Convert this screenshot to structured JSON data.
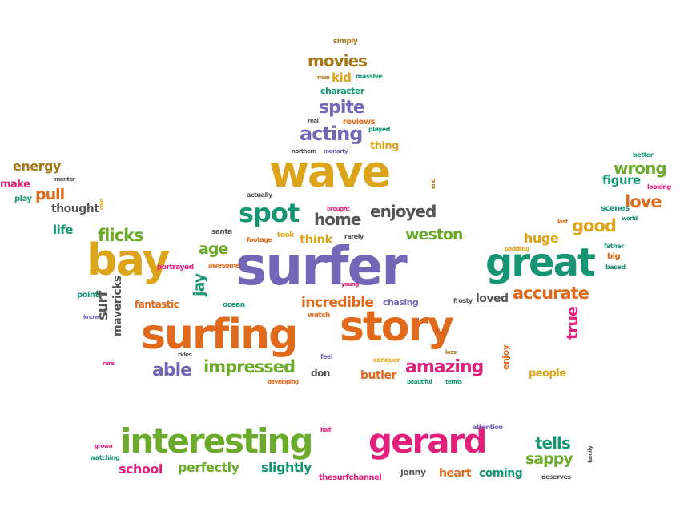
{
  "palette": {
    "purple": "#7466b6",
    "gold": "#dca41a",
    "orange": "#e06a1c",
    "green": "#6caa2c",
    "teal": "#179473",
    "magenta": "#e3217d",
    "brown": "#a77716",
    "gray": "#555555"
  },
  "words": [
    {
      "text": "surfer",
      "color": "purple"
    },
    {
      "text": "surfing",
      "color": "orange"
    },
    {
      "text": "story",
      "color": "orange"
    },
    {
      "text": "wave",
      "color": "gold"
    },
    {
      "text": "bay",
      "color": "gold"
    },
    {
      "text": "great",
      "color": "teal"
    },
    {
      "text": "interesting",
      "color": "green"
    },
    {
      "text": "gerard",
      "color": "magenta"
    },
    {
      "text": "spot",
      "color": "teal"
    },
    {
      "text": "amazing",
      "color": "magenta"
    },
    {
      "text": "acting",
      "color": "purple"
    },
    {
      "text": "impressed",
      "color": "green"
    },
    {
      "text": "accurate",
      "color": "orange"
    },
    {
      "text": "flicks",
      "color": "green"
    },
    {
      "text": "movies",
      "color": "brown"
    },
    {
      "text": "spite",
      "color": "purple"
    },
    {
      "text": "enjoyed",
      "color": "gray"
    },
    {
      "text": "home",
      "color": "gray"
    },
    {
      "text": "good",
      "color": "gold"
    },
    {
      "text": "wrong",
      "color": "green"
    },
    {
      "text": "love",
      "color": "orange"
    },
    {
      "text": "weston",
      "color": "green"
    },
    {
      "text": "able",
      "color": "purple"
    },
    {
      "text": "incredible",
      "color": "orange"
    },
    {
      "text": "true",
      "color": "magenta"
    },
    {
      "text": "tells",
      "color": "teal"
    },
    {
      "text": "sappy",
      "color": "green"
    },
    {
      "text": "age",
      "color": "green"
    },
    {
      "text": "jay",
      "color": "teal"
    },
    {
      "text": "think",
      "color": "gold"
    },
    {
      "text": "huge",
      "color": "gold"
    },
    {
      "text": "pull",
      "color": "orange"
    },
    {
      "text": "energy",
      "color": "brown"
    },
    {
      "text": "figure",
      "color": "teal"
    },
    {
      "text": "perfectly",
      "color": "green"
    },
    {
      "text": "slightly",
      "color": "teal"
    },
    {
      "text": "school",
      "color": "magenta"
    },
    {
      "text": "heart",
      "color": "orange"
    },
    {
      "text": "coming",
      "color": "teal"
    },
    {
      "text": "people",
      "color": "gold"
    },
    {
      "text": "butler",
      "color": "orange"
    },
    {
      "text": "loved",
      "color": "gray"
    },
    {
      "text": "surf",
      "color": "gray"
    },
    {
      "text": "mavericks",
      "color": "gray"
    },
    {
      "text": "thought",
      "color": "gray"
    },
    {
      "text": "life",
      "color": "teal"
    },
    {
      "text": "thing",
      "color": "gold"
    },
    {
      "text": "kid",
      "color": "gold"
    },
    {
      "text": "make",
      "color": "magenta"
    },
    {
      "text": "fantastic",
      "color": "orange"
    },
    {
      "text": "don",
      "color": "gray"
    },
    {
      "text": "chasing",
      "color": "purple"
    },
    {
      "text": "enjoy",
      "color": "orange"
    },
    {
      "text": "character",
      "color": "teal"
    },
    {
      "text": "reviews",
      "color": "orange"
    },
    {
      "text": "jonny",
      "color": "gray"
    },
    {
      "text": "thesurfchannel",
      "color": "magenta"
    },
    {
      "text": "scenes",
      "color": "teal"
    },
    {
      "text": "simply",
      "color": "brown"
    },
    {
      "text": "man",
      "color": "brown"
    },
    {
      "text": "massive",
      "color": "teal"
    },
    {
      "text": "real",
      "color": "gray"
    },
    {
      "text": "played",
      "color": "teal"
    },
    {
      "text": "northern",
      "color": "gray"
    },
    {
      "text": "moriarty",
      "color": "purple"
    },
    {
      "text": "mentor",
      "color": "gray"
    },
    {
      "text": "play",
      "color": "teal"
    },
    {
      "text": "actually",
      "color": "gray"
    },
    {
      "text": "brought",
      "color": "magenta"
    },
    {
      "text": "end",
      "color": "brown"
    },
    {
      "text": "role",
      "color": "gold"
    },
    {
      "text": "santa",
      "color": "gray"
    },
    {
      "text": "footage",
      "color": "orange"
    },
    {
      "text": "took",
      "color": "gold"
    },
    {
      "text": "rarely",
      "color": "gray"
    },
    {
      "text": "portrayed",
      "color": "magenta"
    },
    {
      "text": "awesome",
      "color": "orange"
    },
    {
      "text": "young",
      "color": "magenta"
    },
    {
      "text": "point",
      "color": "teal"
    },
    {
      "text": "know",
      "color": "purple"
    },
    {
      "text": "ocean",
      "color": "teal"
    },
    {
      "text": "watch",
      "color": "orange"
    },
    {
      "text": "frosty",
      "color": "gray"
    },
    {
      "text": "rides",
      "color": "gray"
    },
    {
      "text": "rare",
      "color": "magenta"
    },
    {
      "text": "feel",
      "color": "purple"
    },
    {
      "text": "conquer",
      "color": "gold"
    },
    {
      "text": "loss",
      "color": "brown"
    },
    {
      "text": "developing",
      "color": "orange"
    },
    {
      "text": "beautiful",
      "color": "teal"
    },
    {
      "text": "terms",
      "color": "teal"
    },
    {
      "text": "better",
      "color": "teal"
    },
    {
      "text": "looking",
      "color": "magenta"
    },
    {
      "text": "lost",
      "color": "orange"
    },
    {
      "text": "world",
      "color": "teal"
    },
    {
      "text": "paddling",
      "color": "gold"
    },
    {
      "text": "father",
      "color": "teal"
    },
    {
      "text": "big",
      "color": "orange"
    },
    {
      "text": "based",
      "color": "teal"
    },
    {
      "text": "half",
      "color": "magenta"
    },
    {
      "text": "attention",
      "color": "purple"
    },
    {
      "text": "grown",
      "color": "magenta"
    },
    {
      "text": "watching",
      "color": "teal"
    },
    {
      "text": "family",
      "color": "gray"
    },
    {
      "text": "deserves",
      "color": "gray"
    }
  ]
}
